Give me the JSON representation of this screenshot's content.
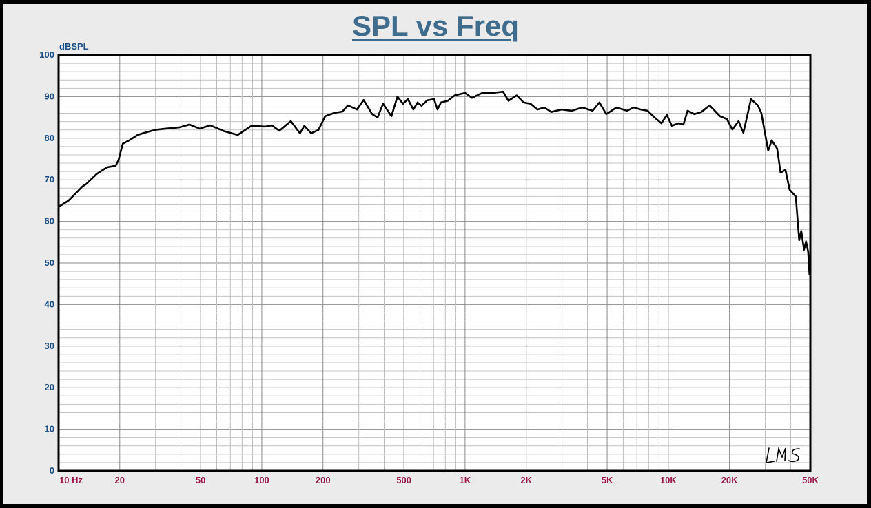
{
  "chart_data": {
    "type": "line",
    "title": "SPL vs Freq",
    "xlabel": "Hz",
    "ylabel": "dBSPL",
    "xscale": "log",
    "xlim": [
      10,
      50000
    ],
    "ylim": [
      0,
      100
    ],
    "grid": true,
    "watermark": "LMS",
    "colors": {
      "line": "#000000",
      "ytick": "#1b4f85",
      "xtick": "#9a1a4c",
      "title": "#3f6b8c"
    },
    "yticks": [
      0,
      10,
      20,
      30,
      40,
      50,
      60,
      70,
      80,
      90,
      100
    ],
    "xticks": [
      {
        "value": 10,
        "label": "10  Hz"
      },
      {
        "value": 20,
        "label": "20"
      },
      {
        "value": 50,
        "label": "50"
      },
      {
        "value": 100,
        "label": "100"
      },
      {
        "value": 200,
        "label": "200"
      },
      {
        "value": 500,
        "label": "500"
      },
      {
        "value": 1000,
        "label": "1K"
      },
      {
        "value": 2000,
        "label": "2K"
      },
      {
        "value": 5000,
        "label": "5K"
      },
      {
        "value": 10000,
        "label": "10K"
      },
      {
        "value": 20000,
        "label": "20K"
      },
      {
        "value": 50000,
        "label": "50K"
      }
    ],
    "series": [
      {
        "name": "SPL",
        "x": [
          10,
          11.2,
          13.1,
          13.7,
          15.4,
          17.3,
          19.1,
          19.7,
          20.7,
          22.3,
          24.5,
          26.5,
          29.8,
          33.5,
          39.2,
          44.1,
          49.5,
          55.7,
          65.1,
          76.1,
          89,
          104,
          112,
          122,
          139,
          154,
          162,
          175,
          190,
          205,
          227,
          249,
          265,
          294,
          317,
          349,
          371,
          395,
          434,
          465,
          495,
          523,
          557,
          584,
          611,
          651,
          704,
          732,
          761,
          823,
          889,
          1000,
          1081,
          1216,
          1367,
          1537,
          1635,
          1796,
          1942,
          2099,
          2270,
          2454,
          2653,
          2984,
          3354,
          3771,
          4239,
          4581,
          4952,
          5568,
          6260,
          6768,
          7317,
          7911,
          8552,
          9246,
          9845,
          10400,
          11240,
          11870,
          12440,
          13450,
          14540,
          15970,
          17960,
          19420,
          20670,
          22170,
          23420,
          25520,
          27590,
          28680,
          31010,
          32250,
          34320,
          35690,
          37700,
          39520,
          42380,
          44060,
          45100,
          46540,
          47640,
          48770,
          49540
        ],
        "y": [
          63.5,
          65,
          68.4,
          69,
          71.4,
          73,
          73.4,
          74.7,
          78.7,
          79.5,
          80.8,
          81.3,
          82,
          82.3,
          82.6,
          83.3,
          82.3,
          83.1,
          81.7,
          80.8,
          83,
          82.8,
          83.1,
          81.8,
          84.1,
          81.2,
          83,
          81.2,
          82,
          85.3,
          86.1,
          86.4,
          87.9,
          86.9,
          89.2,
          85.8,
          85,
          88.3,
          85.3,
          90,
          88.3,
          89.4,
          86.9,
          88.6,
          87.8,
          89.1,
          89.4,
          86.9,
          88.6,
          89,
          90.3,
          90.9,
          89.7,
          90.9,
          90.9,
          91.2,
          89,
          90.3,
          88.6,
          88.3,
          86.9,
          87.4,
          86.3,
          86.9,
          86.6,
          87.4,
          86.6,
          88.6,
          85.8,
          87.4,
          86.6,
          87.4,
          86.9,
          86.6,
          85,
          83.6,
          85.6,
          83,
          83.6,
          83.3,
          86.6,
          85.8,
          86.3,
          87.9,
          85.3,
          84.6,
          82.1,
          84.1,
          81.3,
          89.4,
          87.9,
          86.1,
          77,
          79.5,
          77.5,
          71.7,
          72.4,
          67.6,
          66,
          55.5,
          57.7,
          53.2,
          55.2,
          52.7,
          47
        ]
      }
    ]
  }
}
